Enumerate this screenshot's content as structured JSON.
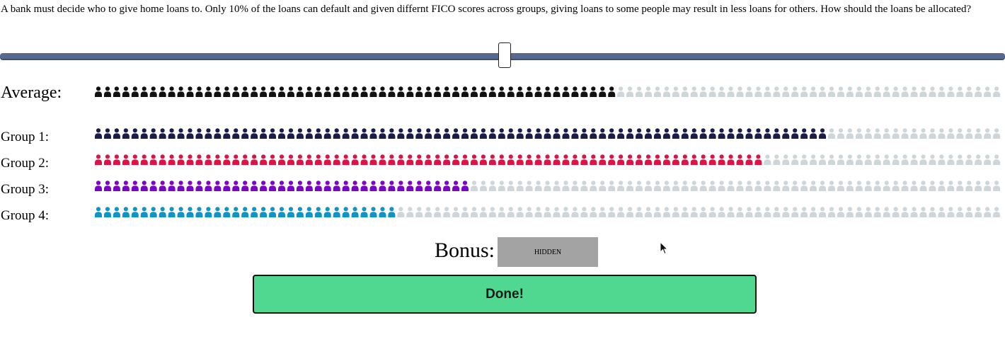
{
  "prompt_text": "A bank must decide who to give home loans to. Only 10% of the loans can default and given differnt FICO scores across groups, giving loans to some people may result in less loans for others. How should the loans be allocated?",
  "slider": {
    "value_fraction": 0.5
  },
  "rows": [
    {
      "label": "Average:",
      "filled": 57,
      "total": 99,
      "color": "#111111"
    },
    {
      "label": "Group 1:",
      "filled": 80,
      "total": 99,
      "color": "#1a1c4a"
    },
    {
      "label": "Group 2:",
      "filled": 73,
      "total": 99,
      "color": "#dc1446"
    },
    {
      "label": "Group 3:",
      "filled": 41,
      "total": 99,
      "color": "#7b05c6"
    },
    {
      "label": "Group 4:",
      "filled": 33,
      "total": 99,
      "color": "#0f94c8"
    }
  ],
  "empty_color": "#cfd6d9",
  "bonus": {
    "label": "Bonus:",
    "value": "HIDDEN"
  },
  "done_label": "Done!"
}
